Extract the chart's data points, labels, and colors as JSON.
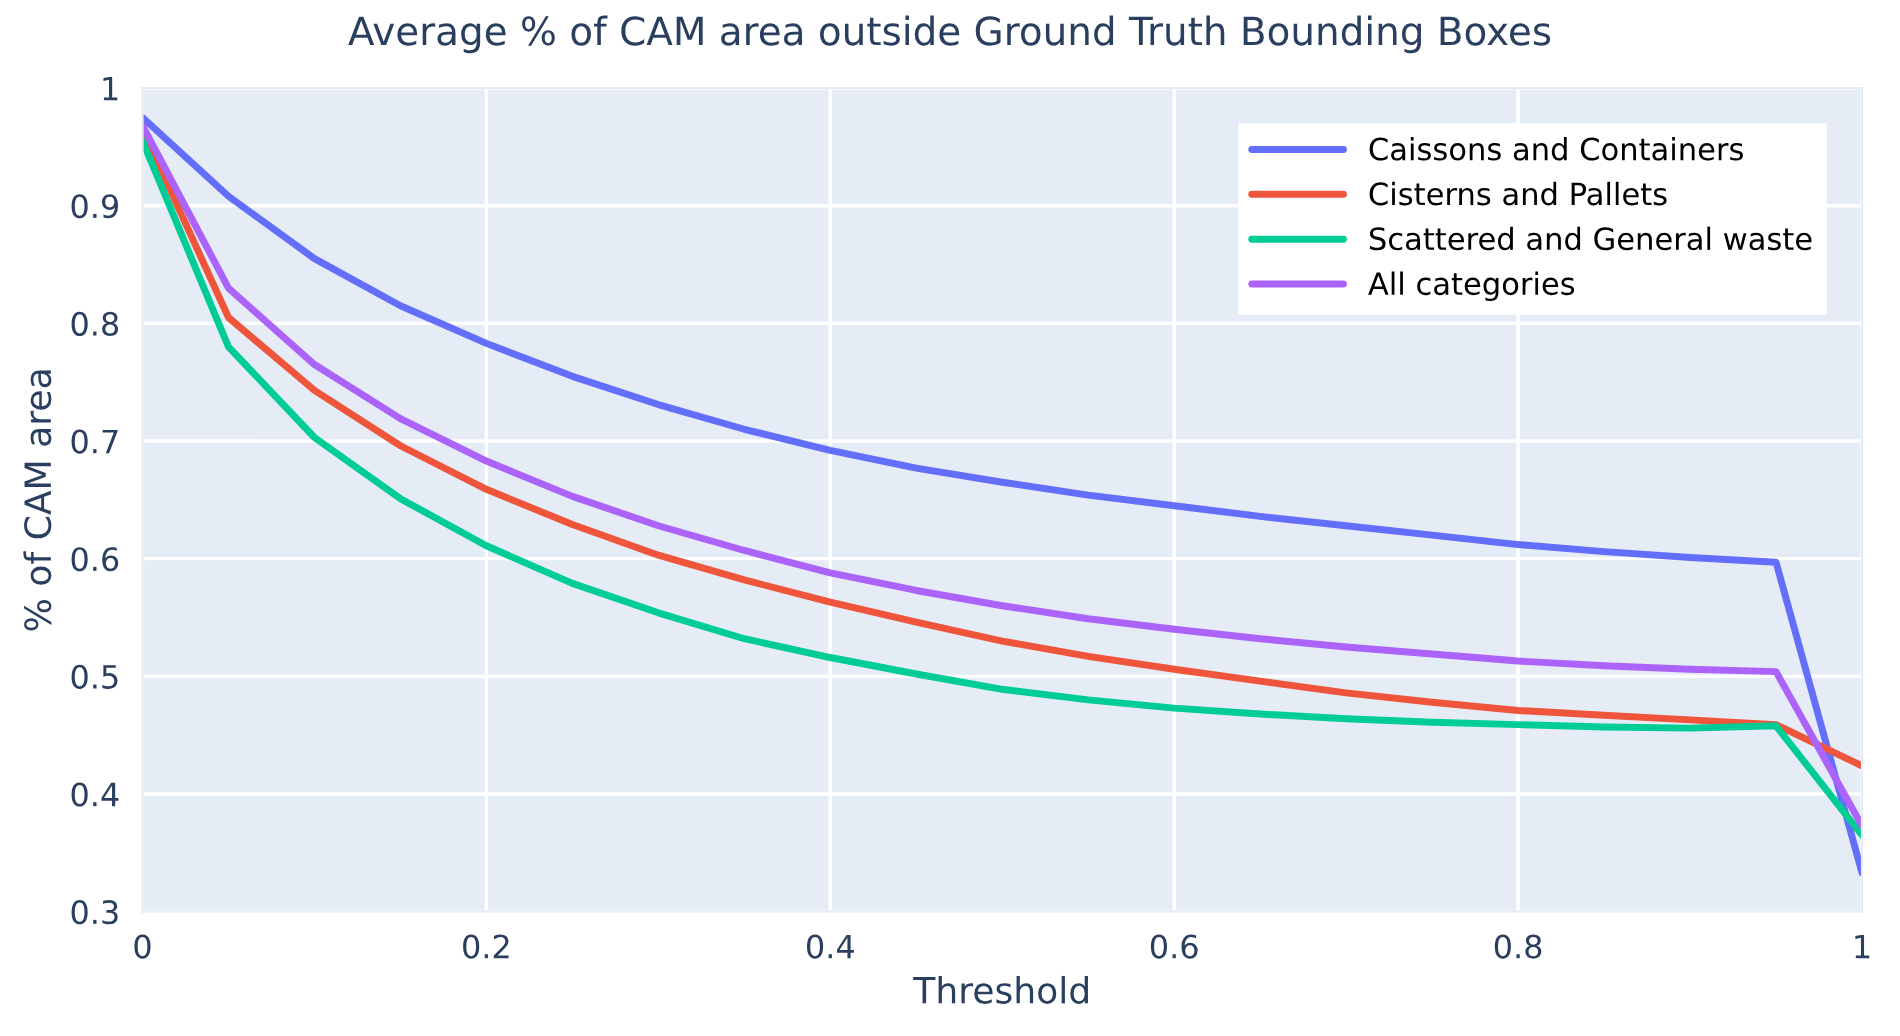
{
  "chart_data": {
    "type": "line",
    "title": "Average % of CAM area outside Ground Truth Bounding Boxes",
    "xlabel": "Threshold",
    "ylabel": "% of CAM area",
    "x": [
      0,
      0.05,
      0.1,
      0.15,
      0.2,
      0.25,
      0.3,
      0.35,
      0.4,
      0.45,
      0.5,
      0.55,
      0.6,
      0.65,
      0.7,
      0.75,
      0.8,
      0.85,
      0.9,
      0.95,
      1
    ],
    "series": [
      {
        "name": "Caissons and Containers",
        "color": "#636efa",
        "values": [
          0.975,
          0.908,
          0.855,
          0.815,
          0.783,
          0.755,
          0.731,
          0.71,
          0.692,
          0.677,
          0.665,
          0.654,
          0.645,
          0.636,
          0.628,
          0.62,
          0.612,
          0.606,
          0.601,
          0.597,
          0.333
        ]
      },
      {
        "name": "Cisterns and Pallets",
        "color": "#ef553b",
        "values": [
          0.965,
          0.805,
          0.743,
          0.696,
          0.659,
          0.629,
          0.603,
          0.582,
          0.563,
          0.546,
          0.53,
          0.517,
          0.506,
          0.496,
          0.486,
          0.478,
          0.471,
          0.467,
          0.463,
          0.459,
          0.424
        ]
      },
      {
        "name": "Scattered and General waste",
        "color": "#00cc96",
        "values": [
          0.955,
          0.78,
          0.703,
          0.651,
          0.611,
          0.579,
          0.554,
          0.532,
          0.516,
          0.502,
          0.489,
          0.48,
          0.473,
          0.468,
          0.464,
          0.461,
          0.459,
          0.457,
          0.456,
          0.458,
          0.365
        ]
      },
      {
        "name": "All categories",
        "color": "#ab63fa",
        "values": [
          0.968,
          0.83,
          0.765,
          0.719,
          0.683,
          0.653,
          0.628,
          0.607,
          0.588,
          0.573,
          0.56,
          0.549,
          0.54,
          0.532,
          0.525,
          0.519,
          0.513,
          0.509,
          0.506,
          0.504,
          0.373
        ]
      }
    ],
    "xlim": [
      0,
      1
    ],
    "ylim": [
      0.3,
      1
    ],
    "xticks": [
      0,
      0.2,
      0.4,
      0.6,
      0.8,
      1
    ],
    "yticks": [
      0.3,
      0.4,
      0.5,
      0.6,
      0.7,
      0.8,
      0.9,
      1
    ],
    "grid": true,
    "legend": "top right",
    "marker": "none",
    "line_style": "solid"
  }
}
